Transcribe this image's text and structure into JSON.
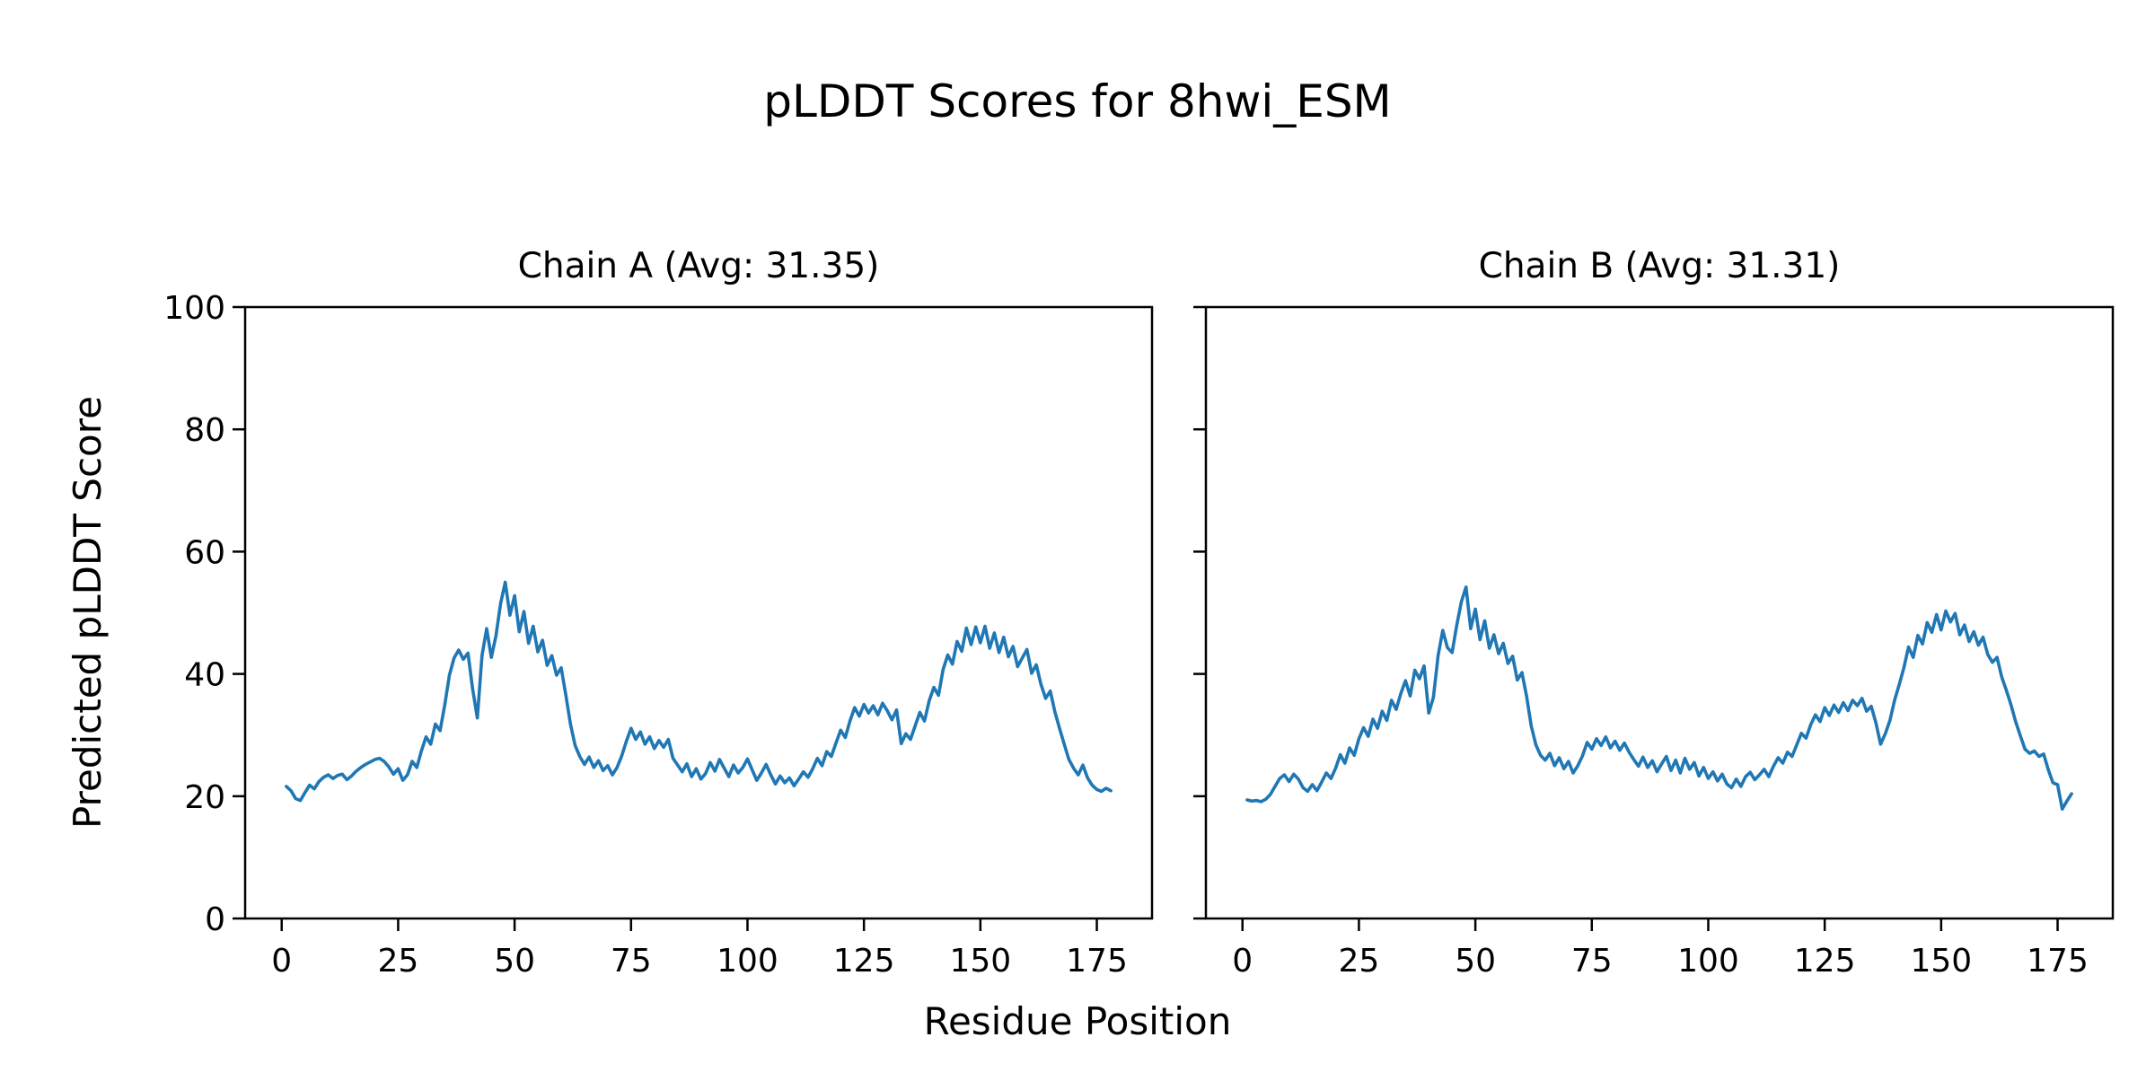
{
  "figure": {
    "title": "pLDDT Scores for 8hwi_ESM",
    "xlabel": "Residue Position",
    "ylabel": "Predicted pLDDT Score",
    "background": "#ffffff",
    "text_color": "#000000"
  },
  "chart_data": [
    {
      "type": "line",
      "key": "chain-a",
      "title": "Chain A (Avg: 31.35)",
      "avg": 31.35,
      "line_color": "#1f77b4",
      "xlim": [
        -7.85,
        186.85
      ],
      "ylim": [
        0,
        100
      ],
      "xticks": [
        0,
        25,
        50,
        75,
        100,
        125,
        150,
        175
      ],
      "yticks": [
        0,
        20,
        40,
        60,
        80,
        100
      ],
      "show_y_tick_labels": true,
      "grid": false,
      "x_start": 1,
      "values": [
        21.6,
        20.9,
        19.6,
        19.3,
        20.6,
        21.8,
        21.2,
        22.4,
        23.1,
        23.5,
        22.9,
        23.4,
        23.6,
        22.7,
        23.3,
        24.1,
        24.7,
        25.2,
        25.6,
        26.0,
        26.2,
        25.7,
        24.8,
        23.6,
        24.5,
        22.6,
        23.5,
        25.7,
        24.7,
        27.4,
        29.7,
        28.5,
        31.8,
        30.7,
        34.9,
        39.8,
        42.6,
        43.9,
        42.4,
        43.4,
        37.5,
        32.8,
        43.0,
        47.4,
        42.7,
        46.2,
        51.5,
        55.0,
        49.6,
        52.8,
        46.9,
        50.2,
        45.0,
        47.8,
        43.6,
        45.5,
        41.4,
        43.0,
        39.8,
        41.0,
        36.5,
        31.8,
        28.3,
        26.5,
        25.2,
        26.4,
        24.7,
        25.8,
        24.2,
        25.0,
        23.5,
        24.7,
        26.6,
        29.0,
        31.1,
        29.3,
        30.5,
        28.5,
        29.7,
        27.8,
        29.1,
        28.0,
        29.3,
        26.2,
        25.1,
        24.0,
        25.3,
        23.2,
        24.5,
        22.8,
        23.7,
        25.5,
        24.1,
        26.0,
        24.6,
        23.2,
        25.1,
        23.8,
        24.7,
        26.1,
        24.3,
        22.6,
        23.8,
        25.2,
        23.5,
        22.0,
        23.3,
        22.2,
        23.0,
        21.7,
        22.8,
        24.0,
        23.1,
        24.5,
        26.2,
        25.0,
        27.3,
        26.5,
        28.7,
        30.8,
        29.6,
        32.3,
        34.5,
        33.1,
        35.0,
        33.6,
        34.8,
        33.3,
        35.2,
        34.0,
        32.5,
        34.1,
        28.6,
        30.2,
        29.3,
        31.5,
        33.7,
        32.3,
        35.6,
        37.8,
        36.5,
        40.7,
        43.1,
        41.6,
        45.3,
        43.7,
        47.5,
        44.8,
        47.7,
        45.1,
        47.8,
        44.2,
        46.7,
        43.5,
        46.0,
        42.8,
        44.5,
        41.2,
        42.6,
        44.0,
        40.1,
        41.5,
        38.3,
        36.0,
        37.2,
        33.8,
        31.1,
        28.5,
        26.0,
        24.6,
        23.5,
        25.1,
        23.0,
        21.8,
        21.1,
        20.8,
        21.3,
        20.9
      ]
    },
    {
      "type": "line",
      "key": "chain-b",
      "title": "Chain B (Avg: 31.31)",
      "avg": 31.31,
      "line_color": "#1f77b4",
      "xlim": [
        -7.85,
        186.85
      ],
      "ylim": [
        0,
        100
      ],
      "xticks": [
        0,
        25,
        50,
        75,
        100,
        125,
        150,
        175
      ],
      "yticks": [
        0,
        20,
        40,
        60,
        80,
        100
      ],
      "show_y_tick_labels": false,
      "grid": false,
      "x_start": 1,
      "values": [
        19.4,
        19.2,
        19.3,
        19.1,
        19.5,
        20.3,
        21.6,
        22.9,
        23.5,
        22.4,
        23.6,
        22.8,
        21.4,
        20.8,
        21.9,
        20.9,
        22.3,
        23.8,
        22.9,
        24.6,
        26.8,
        25.4,
        27.9,
        26.7,
        29.4,
        31.2,
        29.8,
        32.6,
        31.1,
        33.9,
        32.4,
        35.7,
        34.2,
        36.8,
        38.9,
        36.4,
        40.6,
        39.2,
        41.3,
        33.6,
        36.2,
        43.0,
        47.1,
        44.3,
        43.5,
        47.9,
        51.8,
        54.2,
        47.4,
        50.6,
        45.6,
        48.7,
        44.2,
        46.4,
        43.3,
        45.0,
        41.7,
        42.9,
        39.0,
        40.2,
        36.3,
        31.5,
        28.4,
        26.7,
        25.9,
        27.0,
        25.0,
        26.3,
        24.5,
        25.7,
        23.8,
        25.0,
        26.6,
        28.8,
        27.7,
        29.4,
        28.3,
        29.7,
        27.9,
        29.0,
        27.5,
        28.7,
        27.2,
        26.0,
        24.9,
        26.4,
        24.7,
        25.8,
        24.0,
        25.3,
        26.5,
        24.2,
        25.9,
        23.8,
        26.2,
        24.4,
        25.5,
        23.3,
        24.7,
        22.9,
        24.0,
        22.5,
        23.6,
        22.0,
        21.4,
        22.8,
        21.6,
        23.2,
        23.9,
        22.7,
        23.5,
        24.4,
        23.2,
        24.9,
        26.3,
        25.4,
        27.2,
        26.5,
        28.4,
        30.3,
        29.5,
        31.7,
        33.3,
        32.2,
        34.5,
        33.2,
        34.9,
        33.7,
        35.3,
        34.0,
        35.7,
        34.8,
        36.0,
        33.9,
        34.7,
        32.0,
        28.5,
        30.2,
        32.4,
        35.7,
        38.3,
        41.0,
        44.4,
        42.7,
        46.3,
        44.9,
        48.4,
        46.8,
        49.7,
        47.2,
        50.3,
        48.5,
        49.9,
        46.4,
        48.0,
        45.3,
        46.9,
        44.7,
        46.0,
        43.2,
        41.9,
        42.7,
        39.5,
        37.3,
        34.9,
        32.2,
        29.9,
        27.7,
        27.0,
        27.4,
        26.5,
        26.9,
        24.3,
        22.2,
        21.9,
        17.9,
        19.2,
        20.4
      ]
    }
  ]
}
